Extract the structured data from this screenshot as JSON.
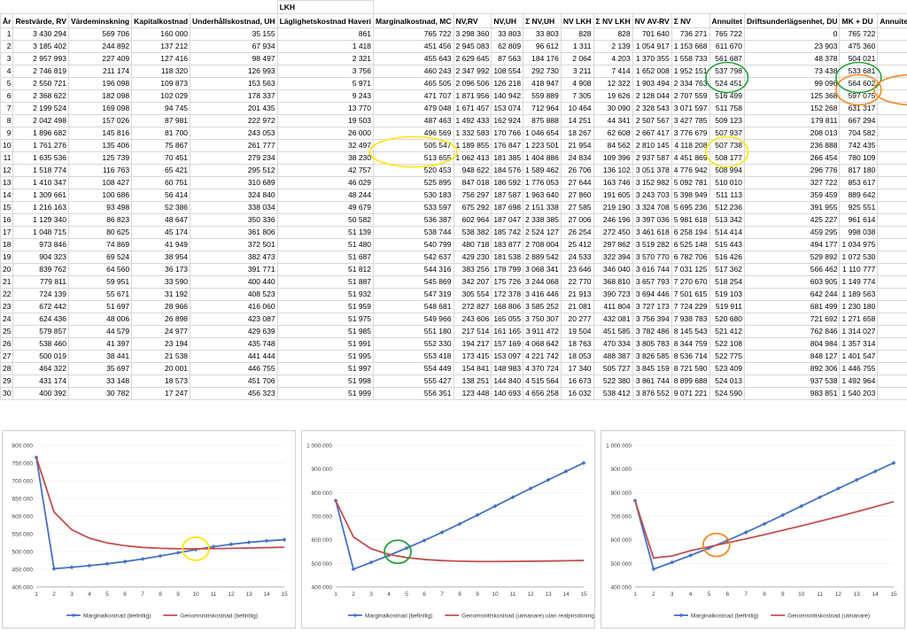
{
  "sheet": {
    "group_header": "LKH",
    "columns": [
      "År",
      "Restvärde, RV",
      "Värdeminskning",
      "Kapitalkostnad",
      "Underhållskostnad, UH",
      "Läglighetskostnad Haveri",
      "Marginalkostnad, MC",
      "NV,RV",
      "NV,UH",
      "Σ NV,UH",
      "NV LKH",
      "Σ NV LKH",
      "NV AV-RV",
      "Σ NV",
      "Annuitet",
      "Driftsunderlägsenhet, DU",
      "MK + DU",
      "Annuitet utmanare"
    ],
    "rows": [
      [
        "1",
        "3 430 294",
        "569 706",
        "160 000",
        "35 155",
        "861",
        "765 722",
        "3 298 360",
        "33 803",
        "33 803",
        "828",
        "828",
        "701 640",
        "736 271",
        "765 722",
        "0",
        "765 722",
        "765 722"
      ],
      [
        "2",
        "3 185 402",
        "244 892",
        "137 212",
        "67 934",
        "1 418",
        "451 456",
        "2 945 083",
        "62 809",
        "96 612",
        "1 311",
        "2 139",
        "1 054 917",
        "1 153 668",
        "611 670",
        "23 903",
        "475 360",
        "522 658"
      ],
      [
        "3",
        "2 957 993",
        "227 409",
        "127 416",
        "98 497",
        "2 321",
        "455 643",
        "2 629 645",
        "87 563",
        "184 176",
        "2 064",
        "4 203",
        "1 370 355",
        "1 558 733",
        "561 687",
        "48 378",
        "504 021",
        "531 196"
      ],
      [
        "4",
        "2 746 819",
        "211 174",
        "118 320",
        "126 993",
        "3 756",
        "460 243",
        "2 347 992",
        "108 554",
        "292 730",
        "3 211",
        "7 414",
        "1 652 008",
        "1 952 151",
        "537 798",
        "73 438",
        "533 681",
        "553 827"
      ],
      [
        "5",
        "2 550 721",
        "196 098",
        "109 873",
        "153 563",
        "5 971",
        "465 505",
        "2 096 506",
        "126 218",
        "418 947",
        "4 908",
        "12 322",
        "1 903 494",
        "2 334 763",
        "524 451",
        "99 096",
        "564 602",
        "570 102"
      ],
      [
        "6",
        "2 368 622",
        "182 098",
        "102 029",
        "178 337",
        "9 243",
        "471 707",
        "1 871 956",
        "140 942",
        "559 889",
        "7 305",
        "19 626",
        "2 128 044",
        "2 707 559",
        "516 499",
        "125 368",
        "597 075",
        "586 856"
      ],
      [
        "7",
        "2 199 524",
        "169 098",
        "94 745",
        "201 435",
        "13 770",
        "479 048",
        "1 671 457",
        "153 074",
        "712 964",
        "10 464",
        "30 090",
        "2 328 543",
        "3 071 597",
        "511 758",
        "152 268",
        "631 317",
        "604 102"
      ],
      [
        "8",
        "2 042 498",
        "157 026",
        "87 981",
        "222 972",
        "19 503",
        "487 463",
        "1 492 433",
        "162 924",
        "875 888",
        "14 251",
        "44 341",
        "2 507 567",
        "3 427 785",
        "509 123",
        "179 811",
        "667 294",
        "621 856"
      ],
      [
        "9",
        "1 896 682",
        "145 816",
        "81 700",
        "243 053",
        "26 000",
        "496 569",
        "1 332 583",
        "170 766",
        "1 046 654",
        "18 267",
        "62 608",
        "2 667 417",
        "3 776 679",
        "507 937",
        "208 013",
        "704 582",
        "640 132"
      ],
      [
        "10",
        "1 761 276",
        "135 406",
        "75 867",
        "261 777",
        "32 497",
        "505 547",
        "1 189 855",
        "176 847",
        "1 223 501",
        "21 954",
        "84 562",
        "2 810 145",
        "4 118 208",
        "507 738",
        "236 888",
        "742 435",
        "658 945"
      ],
      [
        "11",
        "1 635 536",
        "125 739",
        "70 451",
        "279 234",
        "38 230",
        "513 655",
        "1 062 413",
        "181 385",
        "1 404 886",
        "24 834",
        "109 396",
        "2 937 587",
        "4 451 869",
        "508 177",
        "266 454",
        "780 109",
        "678 318"
      ],
      [
        "12",
        "1 518 774",
        "116 763",
        "65 421",
        "295 512",
        "42 757",
        "520 453",
        "948 622",
        "184 576",
        "1 589 462",
        "26 706",
        "136 102",
        "3 051 378",
        "4 776 942",
        "508 994",
        "296 776",
        "817 180",
        "698 261"
      ],
      [
        "13",
        "1 410 347",
        "108 427",
        "60 751",
        "310 689",
        "46 029",
        "525 895",
        "847 018",
        "186 592",
        "1 776 053",
        "27 644",
        "163 746",
        "3 152 982",
        "5 092 781",
        "510 010",
        "327 722",
        "853 617",
        "718 790"
      ],
      [
        "14",
        "1 309 661",
        "100 686",
        "56 414",
        "324 840",
        "48 244",
        "530 183",
        "756 297",
        "187 587",
        "1 963 640",
        "27 860",
        "191 605",
        "3 243 703",
        "5 398 949",
        "511 113",
        "359 459",
        "889 642",
        "739 922"
      ],
      [
        "15",
        "1 216 163",
        "93 498",
        "52 386",
        "338 034",
        "49 679",
        "533 597",
        "675 292",
        "187 698",
        "2 151 338",
        "27 585",
        "219 190",
        "3 324 708",
        "5 695 236",
        "512 236",
        "391 955",
        "925 551",
        "761 645"
      ],
      [
        "16",
        "1 129 340",
        "86 823",
        "48 647",
        "350 336",
        "50 582",
        "536 387",
        "602 964",
        "187 047",
        "2 338 385",
        "27 006",
        "246 196",
        "3 397 036",
        "5 981 618",
        "513 342",
        "425 227",
        "961 614",
        "784 037"
      ],
      [
        "17",
        "1 048 715",
        "80 625",
        "45 174",
        "361 806",
        "51 139",
        "538 744",
        "538 382",
        "185 742",
        "2 524 127",
        "26 254",
        "272 450",
        "3 461 618",
        "6 258 194",
        "514 414",
        "459 295",
        "998 038",
        "807 088"
      ],
      [
        "18",
        "973 846",
        "74 869",
        "41 949",
        "372 501",
        "51 480",
        "540 799",
        "480 718",
        "183 877",
        "2 708 004",
        "25 412",
        "297 862",
        "3 519 282",
        "6 525 148",
        "515 443",
        "494 177",
        "1 034 975",
        "830 817"
      ],
      [
        "19",
        "904 323",
        "69 524",
        "38 954",
        "382 473",
        "51 687",
        "542 637",
        "429 230",
        "181 538",
        "2 889 542",
        "24 533",
        "322 394",
        "3 570 770",
        "6 782 706",
        "516 426",
        "529 892",
        "1 072 530",
        "855 243"
      ],
      [
        "20",
        "839 762",
        "64 560",
        "36 173",
        "391 771",
        "51 812",
        "544 316",
        "383 256",
        "178 799",
        "3 068 341",
        "23 646",
        "346 040",
        "3 616 744",
        "7 031 125",
        "517 362",
        "566 462",
        "1 110 777",
        "880 387"
      ],
      [
        "21",
        "779 811",
        "59 951",
        "33 590",
        "400 440",
        "51 887",
        "545 869",
        "342 207",
        "175 726",
        "3 244 068",
        "22 770",
        "368 810",
        "3 657 793",
        "7 270 670",
        "518 254",
        "603 905",
        "1 149 774",
        "906 270"
      ],
      [
        "22",
        "724 139",
        "55 671",
        "31 192",
        "408 523",
        "51 932",
        "547 319",
        "305 554",
        "172 378",
        "3 416 446",
        "21 913",
        "390 723",
        "3 694 446",
        "7 501 615",
        "519 103",
        "642 244",
        "1 189 563",
        "932 914"
      ],
      [
        "23",
        "672 442",
        "51 697",
        "28 966",
        "416 060",
        "51 959",
        "548 681",
        "272 827",
        "168 806",
        "3 585 252",
        "21 081",
        "411 804",
        "3 727 173",
        "7 724 229",
        "519 911",
        "681 499",
        "1 230 180",
        "960 342"
      ],
      [
        "24",
        "624 436",
        "48 006",
        "26 898",
        "423 087",
        "51 975",
        "549 966",
        "243 606",
        "165 055",
        "3 750 307",
        "20 277",
        "432 081",
        "3 756 394",
        "7 938 783",
        "520 680",
        "721 692",
        "1 271 658",
        "988 576"
      ],
      [
        "25",
        "579 857",
        "44 579",
        "24 977",
        "429 639",
        "51 985",
        "551 180",
        "217 514",
        "161 165",
        "3 911 472",
        "19 504",
        "451 585",
        "3 782 486",
        "8 145 543",
        "521 412",
        "762 846",
        "1 314 027",
        "1 017 640"
      ],
      [
        "26",
        "538 460",
        "41 397",
        "23 194",
        "435 748",
        "51 991",
        "552 330",
        "194 217",
        "157 169",
        "4 068 642",
        "18 763",
        "470 334",
        "3 805 783",
        "8 344 759",
        "522 108",
        "804 984",
        "1 357 314",
        "1 047 559"
      ],
      [
        "27",
        "500 019",
        "38 441",
        "21 538",
        "441 444",
        "51 995",
        "553 418",
        "173 415",
        "153 097",
        "4 221 742",
        "18 053",
        "488 387",
        "3 826 585",
        "8 536 714",
        "522 775",
        "848 127",
        "1 401 547",
        "1 078 357"
      ],
      [
        "28",
        "464 322",
        "35 697",
        "20 001",
        "446 755",
        "51 997",
        "554 449",
        "154 841",
        "148 983",
        "4 370 724",
        "17 340",
        "505 727",
        "3 845 159",
        "8 721 590",
        "523 409",
        "892 306",
        "1 446 755",
        "1 110 061"
      ],
      [
        "29",
        "431 174",
        "33 148",
        "18 573",
        "451 706",
        "51 998",
        "555 427",
        "138 251",
        "144 840",
        "4 515 564",
        "16 673",
        "522 380",
        "3 861 744",
        "8 899 688",
        "524 013",
        "937 538",
        "1 492 964",
        "1 142 697"
      ],
      [
        "30",
        "400 392",
        "30 782",
        "17 247",
        "456 323",
        "51 999",
        "556 351",
        "123 448",
        "140 693",
        "4 656 258",
        "16 032",
        "538 412",
        "3 876 552",
        "9 071 221",
        "524 590",
        "983 851",
        "1 540 203",
        "1 176 292"
      ]
    ]
  },
  "colors": {
    "blue": "#4472C4",
    "red": "#C0504D",
    "yellow": "#FFE600",
    "green": "#23A03A",
    "orange": "#F28A1E"
  },
  "chart_data": [
    {
      "type": "line",
      "x": [
        1,
        2,
        3,
        4,
        5,
        6,
        7,
        8,
        9,
        10,
        11,
        12,
        13,
        14,
        15
      ],
      "ylim": [
        400000,
        800000
      ],
      "yticks": [
        "400 000",
        "450 000",
        "500 000",
        "550 000",
        "600 000",
        "650 000",
        "700 000",
        "750 000",
        "800 000"
      ],
      "series": [
        {
          "name": "Marginalkostnad (befintlig)",
          "color": "#4472C4",
          "marker": true,
          "values": [
            765722,
            451456,
            455643,
            460243,
            465505,
            471707,
            479048,
            487463,
            496569,
            505547,
            513655,
            520453,
            525895,
            530183,
            533597
          ]
        },
        {
          "name": "Genomsnittskostnad (befintlig)",
          "color": "#C0504D",
          "marker": false,
          "values": [
            765722,
            611670,
            561687,
            537798,
            524451,
            516499,
            511758,
            509123,
            507937,
            507738,
            508177,
            508994,
            510010,
            511113,
            512236
          ]
        }
      ],
      "highlight": {
        "x": 10,
        "y": 507738,
        "color": "#FFE600"
      }
    },
    {
      "type": "line",
      "x": [
        1,
        2,
        3,
        4,
        5,
        6,
        7,
        8,
        9,
        10,
        11,
        12,
        13,
        14,
        15
      ],
      "ylim": [
        400000,
        1000000
      ],
      "yticks": [
        "400 000",
        "500 000",
        "600 000",
        "700 000",
        "800 000",
        "900 000",
        "1 000 000"
      ],
      "series": [
        {
          "name": "Marginalkostnad (befintlig)",
          "color": "#4472C4",
          "marker": true,
          "values": [
            765722,
            475360,
            504021,
            533681,
            564602,
            597075,
            631317,
            667294,
            704582,
            742435,
            780109,
            817180,
            853617,
            889642,
            925551
          ]
        },
        {
          "name": "Genomsnittskostnad (utmanare) utan realprisökning",
          "color": "#C0504D",
          "marker": false,
          "values": [
            765722,
            611670,
            561687,
            537798,
            524451,
            516499,
            511758,
            509123,
            507937,
            507738,
            508177,
            508994,
            510010,
            511113,
            512236
          ]
        }
      ],
      "highlight": {
        "x": 4.5,
        "y": 549000,
        "color": "#23A03A"
      }
    },
    {
      "type": "line",
      "x": [
        1,
        2,
        3,
        4,
        5,
        6,
        7,
        8,
        9,
        10,
        11,
        12,
        13,
        14,
        15
      ],
      "ylim": [
        400000,
        1000000
      ],
      "yticks": [
        "400 000",
        "500 000",
        "600 000",
        "700 000",
        "800 000",
        "900 000",
        "1 000 000"
      ],
      "series": [
        {
          "name": "Marginalkostnad (befintlig)",
          "color": "#4472C4",
          "marker": true,
          "values": [
            765722,
            475360,
            504021,
            533681,
            564602,
            597075,
            631317,
            667294,
            704582,
            742435,
            780109,
            817180,
            853617,
            889642,
            925551
          ]
        },
        {
          "name": "Genomsnittskostnad (utmanare)",
          "color": "#C0504D",
          "marker": false,
          "values": [
            765722,
            522658,
            531196,
            553827,
            570102,
            586856,
            604102,
            621856,
            640132,
            658945,
            678318,
            698261,
            718790,
            739922,
            761645
          ]
        }
      ],
      "highlight": {
        "x": 5.4,
        "y": 578000,
        "color": "#F28A1E"
      }
    }
  ]
}
